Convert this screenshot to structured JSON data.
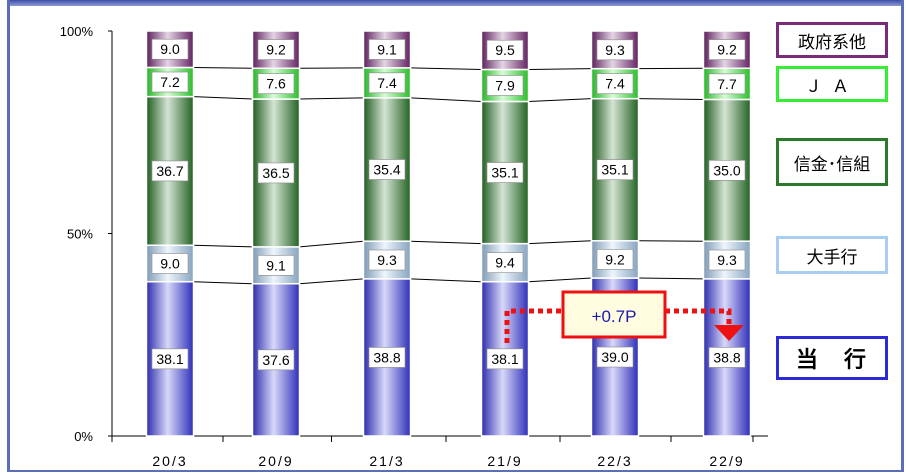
{
  "chart_data": {
    "type": "bar",
    "stacked": true,
    "categories": [
      "20/3",
      "20/9",
      "21/3",
      "21/9",
      "22/3",
      "22/9"
    ],
    "y_ticks": [
      "0%",
      "50%",
      "100%"
    ],
    "ylim": [
      0,
      100
    ],
    "series": [
      {
        "name": "当　行",
        "color": "#3a3ae6",
        "values": [
          38.1,
          37.6,
          38.8,
          38.1,
          39.0,
          38.8
        ]
      },
      {
        "name": "大手行",
        "color": "#a8cdf0",
        "values": [
          9.0,
          9.1,
          9.3,
          9.4,
          9.2,
          9.3
        ]
      },
      {
        "name": "信金･信組",
        "color": "#2a7a2a",
        "values": [
          36.7,
          36.5,
          35.4,
          35.1,
          35.1,
          35.0
        ]
      },
      {
        "name": "ＪＡ",
        "color": "#33ee33",
        "values": [
          7.2,
          7.6,
          7.4,
          7.9,
          7.4,
          7.7
        ]
      },
      {
        "name": "政府系他",
        "color": "#7a2a7a",
        "values": [
          9.0,
          9.2,
          9.1,
          9.5,
          9.3,
          9.2
        ]
      }
    ],
    "annotation": {
      "text": "+0.7P",
      "from_category": "21/9",
      "to_category": "22/9",
      "color": "#ee1111"
    }
  }
}
